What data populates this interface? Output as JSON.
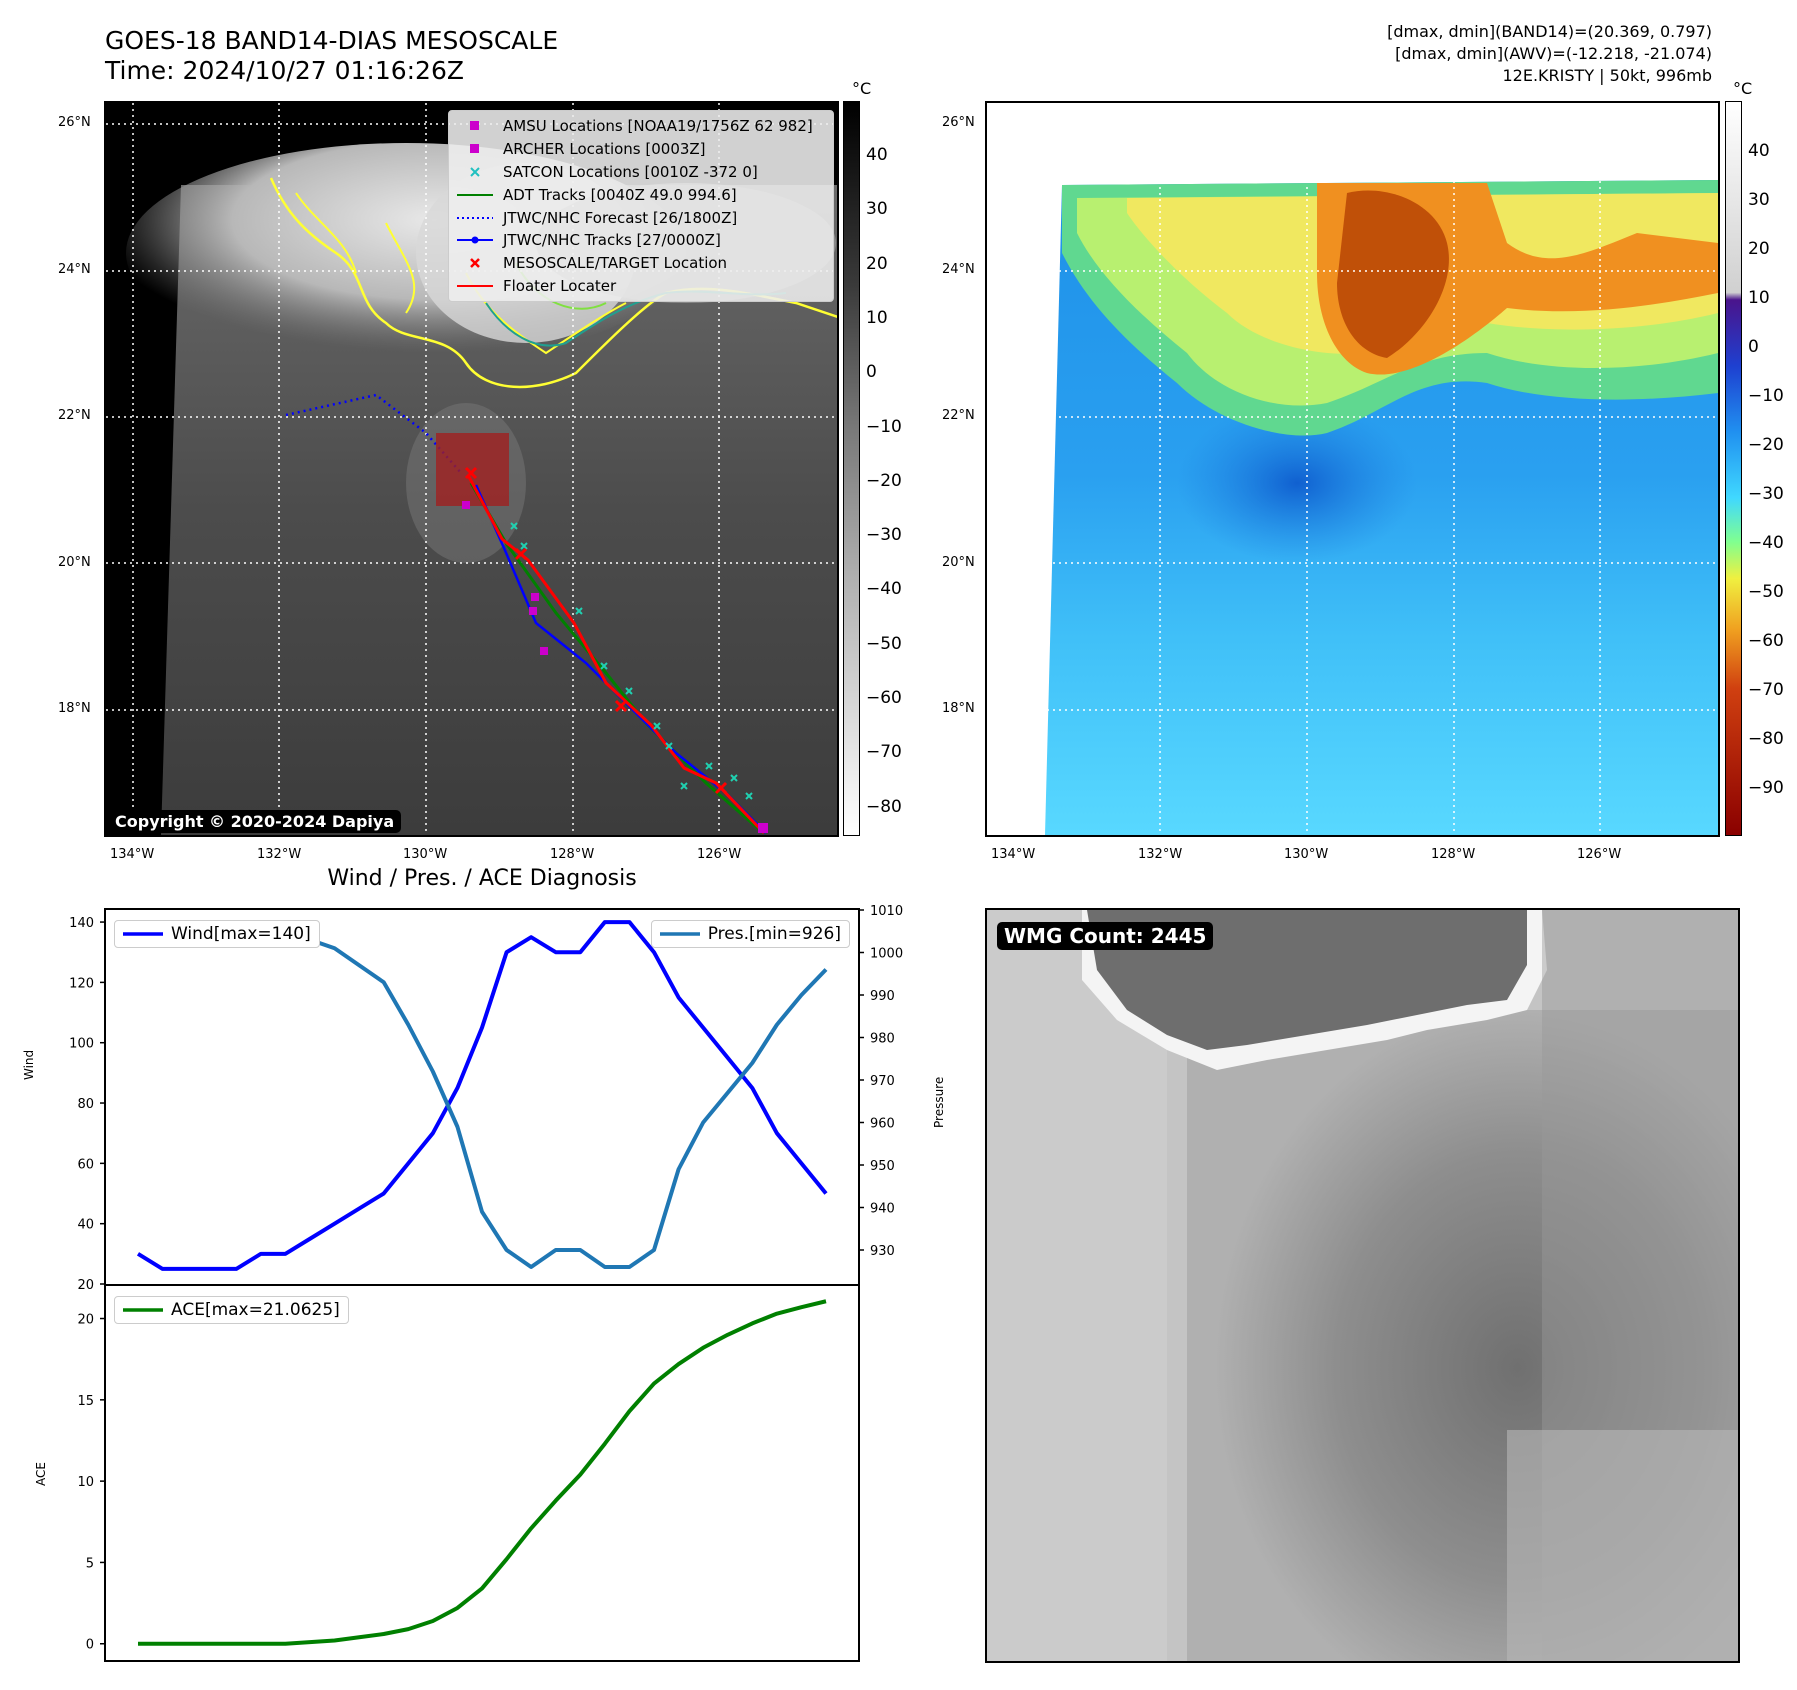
{
  "header": {
    "title_line1": "GOES-18 BAND14-DIAS MESOSCALE",
    "title_line2": "Time: 2024/10/27 01:16:26Z",
    "right_line1": "[dmax, dmin](BAND14)=(20.369, 0.797)",
    "right_line2": "[dmax, dmin](AWV)=(-12.218, -21.074)",
    "right_line3": "12E.KRISTY | 50kt, 996mb"
  },
  "map_left": {
    "lat_labels": [
      "26°N",
      "24°N",
      "22°N",
      "20°N",
      "18°N"
    ],
    "lon_labels": [
      "134°W",
      "132°W",
      "130°W",
      "128°W",
      "126°W"
    ],
    "copyright": "Copyright © 2020-2024 Dapiya",
    "legend": [
      {
        "label": "AMSU Locations [NOAA19/1756Z 62 982]",
        "symbol": "square",
        "color": "#cc00cc"
      },
      {
        "label": "ARCHER Locations [0003Z]",
        "symbol": "square",
        "color": "#cc00cc"
      },
      {
        "label": "SATCON Locations [0010Z -372 0]",
        "symbol": "x",
        "color": "#20c0c0"
      },
      {
        "label": "ADT Tracks [0040Z 49.0 994.6]",
        "symbol": "line",
        "color": "#008000"
      },
      {
        "label": "JTWC/NHC Forecast [26/1800Z]",
        "symbol": "dotted",
        "color": "#0000ff"
      },
      {
        "label": "JTWC/NHC Tracks [27/0000Z]",
        "symbol": "dotline",
        "color": "#0000ff"
      },
      {
        "label": "MESOSCALE/TARGET Location",
        "symbol": "x",
        "color": "#ff0000"
      },
      {
        "label": "Floater Locater",
        "symbol": "line",
        "color": "#ff0000"
      }
    ],
    "colorbar_unit": "°C",
    "colorbar_ticks": [
      "40",
      "30",
      "20",
      "10",
      "0",
      "−10",
      "−20",
      "−30",
      "−40",
      "−50",
      "−60",
      "−70",
      "−80"
    ]
  },
  "map_right": {
    "lat_labels": [
      "26°N",
      "24°N",
      "22°N",
      "20°N",
      "18°N"
    ],
    "lon_labels": [
      "134°W",
      "132°W",
      "130°W",
      "128°W",
      "126°W"
    ],
    "colorbar_unit": "°C",
    "colorbar_ticks": [
      "40",
      "30",
      "20",
      "10",
      "0",
      "−10",
      "−20",
      "−30",
      "−40",
      "−50",
      "−60",
      "−70",
      "−80",
      "−90"
    ]
  },
  "wmg": {
    "label": "WMG Count: 2445"
  },
  "chart_data": [
    {
      "type": "line",
      "title": "Wind / Pres. / ACE Diagnosis",
      "ylabel": "Wind",
      "y2label": "Pressure",
      "ylim": [
        20,
        144
      ],
      "y2lim": [
        922,
        1010
      ],
      "yticks": [
        20,
        40,
        60,
        80,
        100,
        120,
        140
      ],
      "y2ticks": [
        930,
        940,
        950,
        960,
        970,
        980,
        990,
        1000,
        1010
      ],
      "x": [
        0,
        1,
        2,
        3,
        4,
        5,
        6,
        7,
        8,
        9,
        10,
        11,
        12,
        13,
        14,
        15,
        16,
        17,
        18,
        19,
        20,
        21,
        22,
        23,
        24,
        25,
        26,
        27,
        28
      ],
      "series": [
        {
          "name": "Wind[max=140]",
          "color": "#0000ff",
          "axis": "left",
          "values": [
            30,
            25,
            25,
            25,
            25,
            30,
            30,
            35,
            40,
            45,
            50,
            60,
            70,
            85,
            105,
            130,
            135,
            130,
            130,
            140,
            140,
            130,
            115,
            105,
            95,
            85,
            70,
            60,
            50
          ]
        },
        {
          "name": "Pres.[min=926]",
          "color": "#1f77b4",
          "axis": "right",
          "values": [
            1006,
            1006,
            1006,
            1007,
            1007,
            1005,
            1005,
            1003,
            1001,
            997,
            993,
            983,
            972,
            959,
            939,
            930,
            926,
            930,
            930,
            926,
            926,
            930,
            949,
            960,
            967,
            974,
            983,
            990,
            996
          ]
        }
      ]
    },
    {
      "type": "line",
      "ylabel": "ACE",
      "ylim": [
        -1,
        22
      ],
      "yticks": [
        0,
        5,
        10,
        15,
        20
      ],
      "x": [
        0,
        1,
        2,
        3,
        4,
        5,
        6,
        7,
        8,
        9,
        10,
        11,
        12,
        13,
        14,
        15,
        16,
        17,
        18,
        19,
        20,
        21,
        22,
        23,
        24,
        25,
        26,
        27,
        28
      ],
      "series": [
        {
          "name": "ACE[max=21.0625]",
          "color": "#008000",
          "values": [
            0,
            0,
            0,
            0,
            0,
            0,
            0,
            0.1,
            0.2,
            0.4,
            0.6,
            0.9,
            1.4,
            2.2,
            3.4,
            5.2,
            7.1,
            8.8,
            10.4,
            12.3,
            14.3,
            16.0,
            17.2,
            18.2,
            19.0,
            19.7,
            20.3,
            20.7,
            21.0625
          ]
        }
      ]
    }
  ]
}
